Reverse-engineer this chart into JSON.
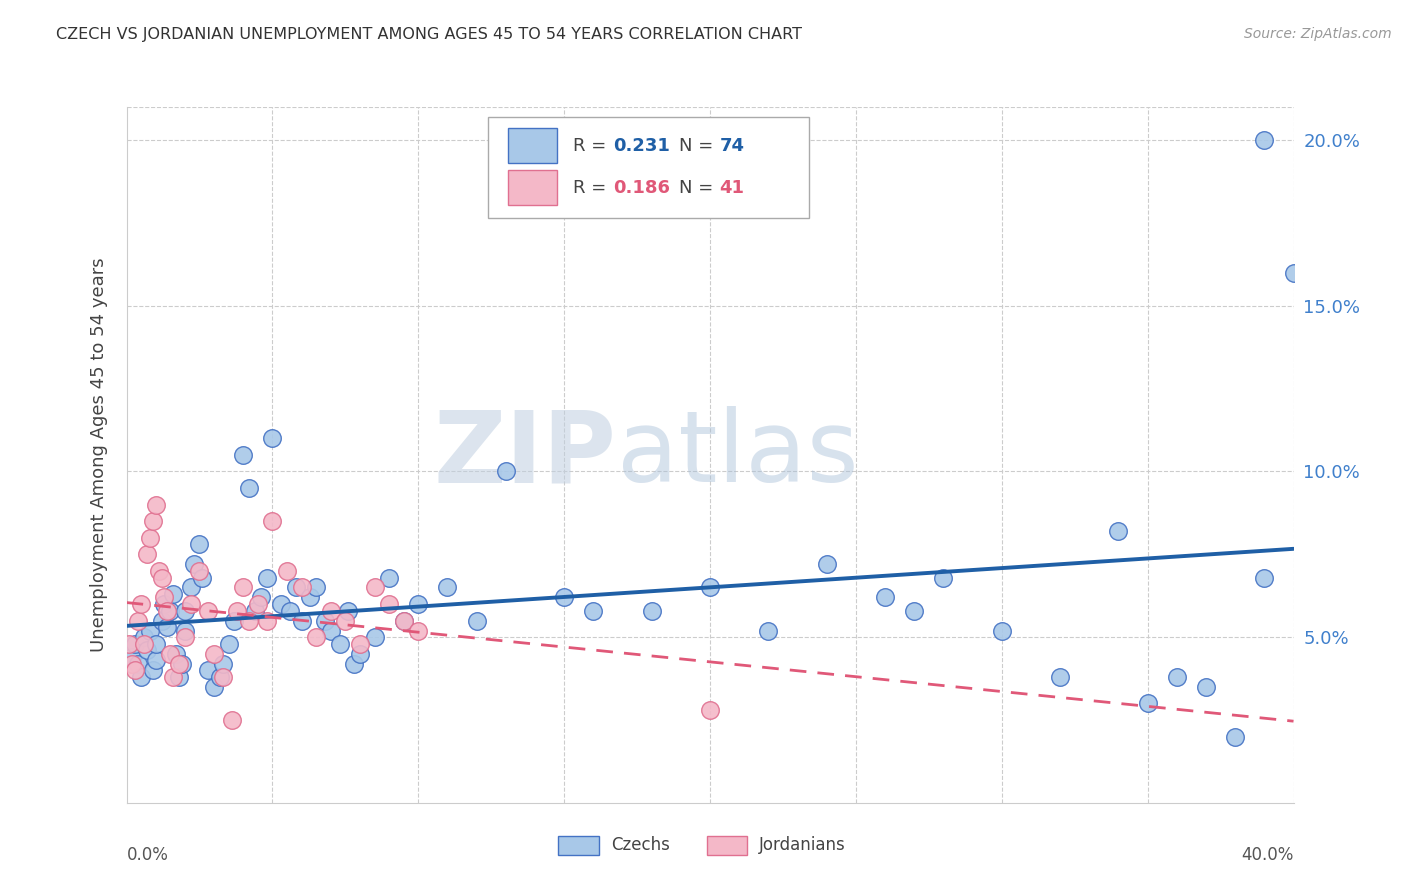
{
  "title": "CZECH VS JORDANIAN UNEMPLOYMENT AMONG AGES 45 TO 54 YEARS CORRELATION CHART",
  "source": "Source: ZipAtlas.com",
  "ylabel": "Unemployment Among Ages 45 to 54 years",
  "xlim": [
    0.0,
    0.4
  ],
  "ylim": [
    0.0,
    0.21
  ],
  "yticks": [
    0.05,
    0.1,
    0.15,
    0.2
  ],
  "ytick_labels": [
    "5.0%",
    "10.0%",
    "15.0%",
    "20.0%"
  ],
  "xtick_vals": [
    0.0,
    0.05,
    0.1,
    0.15,
    0.2,
    0.25,
    0.3,
    0.35,
    0.4
  ],
  "legend_R_czech": "0.231",
  "legend_N_czech": "74",
  "legend_R_jordan": "0.186",
  "legend_N_jordan": "41",
  "czech_color": "#a8c8e8",
  "czech_edge_color": "#4472c4",
  "czech_line_color": "#1f5fa6",
  "jordan_color": "#f4b8c8",
  "jordan_edge_color": "#e07090",
  "jordan_line_color": "#e05878",
  "watermark_color": "#c8d8e8",
  "background_color": "#ffffff",
  "grid_color": "#cccccc",
  "right_tick_color": "#4080cc",
  "title_color": "#333333",
  "ylabel_color": "#444444",
  "czech_scatter_x": [
    0.002,
    0.003,
    0.004,
    0.005,
    0.006,
    0.007,
    0.008,
    0.009,
    0.01,
    0.01,
    0.012,
    0.013,
    0.014,
    0.015,
    0.016,
    0.017,
    0.018,
    0.019,
    0.02,
    0.02,
    0.022,
    0.023,
    0.025,
    0.026,
    0.028,
    0.03,
    0.032,
    0.033,
    0.035,
    0.037,
    0.04,
    0.042,
    0.044,
    0.046,
    0.048,
    0.05,
    0.053,
    0.056,
    0.058,
    0.06,
    0.063,
    0.065,
    0.068,
    0.07,
    0.073,
    0.076,
    0.078,
    0.08,
    0.085,
    0.09,
    0.095,
    0.1,
    0.11,
    0.12,
    0.13,
    0.15,
    0.16,
    0.18,
    0.2,
    0.22,
    0.24,
    0.26,
    0.27,
    0.28,
    0.3,
    0.32,
    0.34,
    0.35,
    0.36,
    0.37,
    0.38,
    0.39,
    0.39,
    0.4
  ],
  "czech_scatter_y": [
    0.044,
    0.048,
    0.042,
    0.038,
    0.05,
    0.046,
    0.052,
    0.04,
    0.043,
    0.048,
    0.055,
    0.06,
    0.053,
    0.058,
    0.063,
    0.045,
    0.038,
    0.042,
    0.052,
    0.058,
    0.065,
    0.072,
    0.078,
    0.068,
    0.04,
    0.035,
    0.038,
    0.042,
    0.048,
    0.055,
    0.105,
    0.095,
    0.058,
    0.062,
    0.068,
    0.11,
    0.06,
    0.058,
    0.065,
    0.055,
    0.062,
    0.065,
    0.055,
    0.052,
    0.048,
    0.058,
    0.042,
    0.045,
    0.05,
    0.068,
    0.055,
    0.06,
    0.065,
    0.055,
    0.1,
    0.062,
    0.058,
    0.058,
    0.065,
    0.052,
    0.072,
    0.062,
    0.058,
    0.068,
    0.052,
    0.038,
    0.082,
    0.03,
    0.038,
    0.035,
    0.02,
    0.068,
    0.2,
    0.16
  ],
  "jordan_scatter_x": [
    0.001,
    0.002,
    0.003,
    0.004,
    0.005,
    0.006,
    0.007,
    0.008,
    0.009,
    0.01,
    0.011,
    0.012,
    0.013,
    0.014,
    0.015,
    0.016,
    0.018,
    0.02,
    0.022,
    0.025,
    0.028,
    0.03,
    0.033,
    0.036,
    0.038,
    0.04,
    0.042,
    0.045,
    0.048,
    0.05,
    0.055,
    0.06,
    0.065,
    0.07,
    0.075,
    0.08,
    0.085,
    0.09,
    0.095,
    0.1,
    0.2
  ],
  "jordan_scatter_y": [
    0.048,
    0.042,
    0.04,
    0.055,
    0.06,
    0.048,
    0.075,
    0.08,
    0.085,
    0.09,
    0.07,
    0.068,
    0.062,
    0.058,
    0.045,
    0.038,
    0.042,
    0.05,
    0.06,
    0.07,
    0.058,
    0.045,
    0.038,
    0.025,
    0.058,
    0.065,
    0.055,
    0.06,
    0.055,
    0.085,
    0.07,
    0.065,
    0.05,
    0.058,
    0.055,
    0.048,
    0.065,
    0.06,
    0.055,
    0.052,
    0.028
  ]
}
